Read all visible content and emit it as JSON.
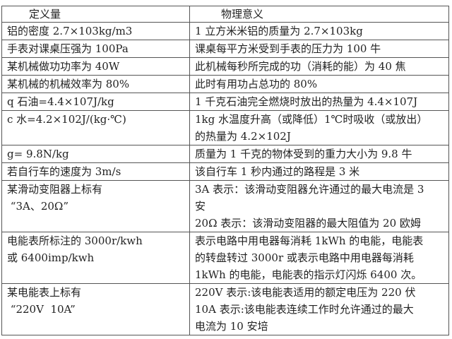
{
  "header": {
    "col1": "定义量",
    "col2": "物理意义"
  },
  "rows": [
    {
      "term": [
        "铝的密度 2.7×103kg/m3"
      ],
      "meaning": [
        "1 立方米米铝的质量为 2.7×103kg"
      ]
    },
    {
      "term": [
        "手表对课桌压强为 100Pa"
      ],
      "meaning": [
        "课桌每平方米受到手表的压力为 100 牛"
      ]
    },
    {
      "term": [
        "某机械做功功率为 40W"
      ],
      "meaning": [
        "此机械每秒所完成的功（消耗的能）为 40 焦"
      ]
    },
    {
      "term": [
        "某机械的机械效率为 80%"
      ],
      "meaning": [
        "此时有用功占总功的 80%"
      ]
    },
    {
      "term": [
        "q 石油=4.4×107J/kg"
      ],
      "meaning": [
        "1 千克石油完全燃烧时放出的热量为 4.4×107J"
      ]
    },
    {
      "term": [
        "c 水=4.2×102J/(kg·℃)"
      ],
      "meaning": [
        "1kg 水温度升高（或降低）1℃时吸收（或放出）",
        "的热量为 4.2×102J"
      ]
    },
    {
      "term": [
        "g= 9.8N/kg"
      ],
      "meaning": [
        "质量为 1 千克的物体受到的重力大小为 9.8 牛"
      ]
    },
    {
      "term": [
        "若自行车的速度为 3m/s"
      ],
      "meaning": [
        "该自行车 1 秒内通过的路程是 3 米"
      ]
    },
    {
      "term": [
        "某滑动变阻器上标有",
        " “3A、20Ω”"
      ],
      "meaning": [
        "3A 表示：该滑动变阻器允许通过的最大电流是 3",
        "安",
        "20Ω 表示：该滑动变阻器的最大阻值为 20 欧姆"
      ]
    },
    {
      "term": [
        "电能表所标注的 3000r/kwh",
        "或 6400imp/kwh"
      ],
      "meaning": [
        "表示电路中用电器每消耗 1kWh 的电能，电能表",
        "的转盘转过 3000r 或表示电路中用电器每消耗",
        "1kWh 的电能，电能表的指示灯闪烁 6400 次。"
      ]
    },
    {
      "term": [
        "某电能表上标有",
        " “220V  10A”"
      ],
      "meaning": [
        "220V 表示:该电能表适用的额定电压为 220 伏",
        "10A 表示:该电能表连续工作时允许通过的最大",
        "电流为 10 安培"
      ]
    }
  ]
}
